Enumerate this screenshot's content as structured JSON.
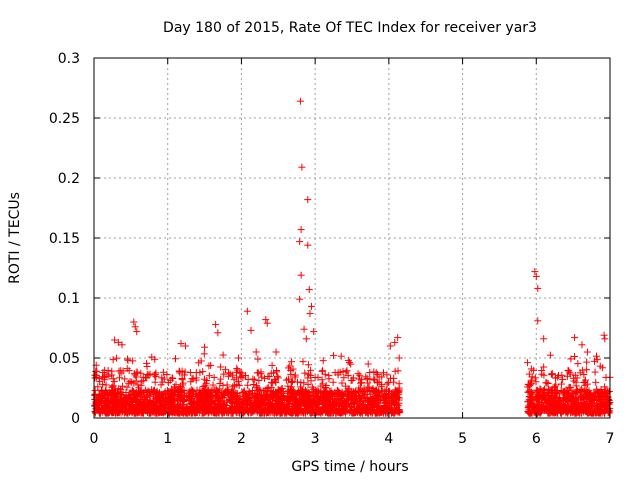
{
  "chart_data": {
    "type": "scatter",
    "title": "Day 180 of 2015, Rate Of TEC Index for receiver yar3",
    "xlabel": "GPS time / hours",
    "ylabel": "ROTI / TECUs",
    "xlim": [
      0,
      7
    ],
    "ylim": [
      0,
      0.3
    ],
    "x_ticks": [
      "0",
      "1",
      "2",
      "3",
      "4",
      "5",
      "6",
      "7"
    ],
    "y_ticks": [
      "0",
      "0.05",
      "0.1",
      "0.15",
      "0.2",
      "0.25",
      "0.3"
    ],
    "x_tick_values": [
      0,
      1,
      2,
      3,
      4,
      5,
      6,
      7
    ],
    "y_tick_values": [
      0,
      0.05,
      0.1,
      0.15,
      0.2,
      0.25,
      0.3
    ],
    "grid": true,
    "marker": "+",
    "color": "#ff0000",
    "series": [
      {
        "name": "ROTI",
        "coverage_hours": [
          [
            0.0,
            4.15
          ],
          [
            5.88,
            7.0
          ]
        ],
        "typical_range": [
          0.0,
          0.03
        ],
        "points": [
          {
            "x": 2.8,
            "y": 0.264
          },
          {
            "x": 2.82,
            "y": 0.209
          },
          {
            "x": 2.9,
            "y": 0.182
          },
          {
            "x": 2.81,
            "y": 0.157
          },
          {
            "x": 2.79,
            "y": 0.147
          },
          {
            "x": 2.9,
            "y": 0.144
          },
          {
            "x": 2.81,
            "y": 0.119
          },
          {
            "x": 2.92,
            "y": 0.107
          },
          {
            "x": 2.79,
            "y": 0.099
          },
          {
            "x": 2.95,
            "y": 0.093
          },
          {
            "x": 2.93,
            "y": 0.087
          },
          {
            "x": 2.85,
            "y": 0.074
          },
          {
            "x": 2.98,
            "y": 0.072
          },
          {
            "x": 2.88,
            "y": 0.066
          },
          {
            "x": 5.98,
            "y": 0.122
          },
          {
            "x": 6.0,
            "y": 0.118
          },
          {
            "x": 6.02,
            "y": 0.108
          },
          {
            "x": 6.02,
            "y": 0.081
          },
          {
            "x": 6.1,
            "y": 0.066
          },
          {
            "x": 6.52,
            "y": 0.067
          },
          {
            "x": 6.92,
            "y": 0.069
          },
          {
            "x": 6.93,
            "y": 0.066
          },
          {
            "x": 6.62,
            "y": 0.061
          },
          {
            "x": 2.08,
            "y": 0.089
          },
          {
            "x": 0.54,
            "y": 0.08
          },
          {
            "x": 0.56,
            "y": 0.076
          },
          {
            "x": 0.58,
            "y": 0.072
          },
          {
            "x": 2.33,
            "y": 0.082
          },
          {
            "x": 2.35,
            "y": 0.079
          },
          {
            "x": 1.65,
            "y": 0.078
          },
          {
            "x": 1.68,
            "y": 0.071
          },
          {
            "x": 2.13,
            "y": 0.073
          },
          {
            "x": 0.28,
            "y": 0.065
          },
          {
            "x": 0.33,
            "y": 0.063
          },
          {
            "x": 0.38,
            "y": 0.061
          },
          {
            "x": 1.18,
            "y": 0.062
          },
          {
            "x": 1.24,
            "y": 0.06
          },
          {
            "x": 1.5,
            "y": 0.059
          },
          {
            "x": 4.12,
            "y": 0.067
          },
          {
            "x": 4.08,
            "y": 0.063
          },
          {
            "x": 4.02,
            "y": 0.06
          },
          {
            "x": 0.03,
            "y": 0.044
          },
          {
            "x": 0.72,
            "y": 0.043
          },
          {
            "x": 2.47,
            "y": 0.055
          },
          {
            "x": 3.25,
            "y": 0.052
          },
          {
            "x": 3.45,
            "y": 0.048
          },
          {
            "x": 3.72,
            "y": 0.045
          },
          {
            "x": 1.42,
            "y": 0.046
          },
          {
            "x": 1.96,
            "y": 0.05
          },
          {
            "x": 2.2,
            "y": 0.055
          }
        ]
      }
    ]
  }
}
